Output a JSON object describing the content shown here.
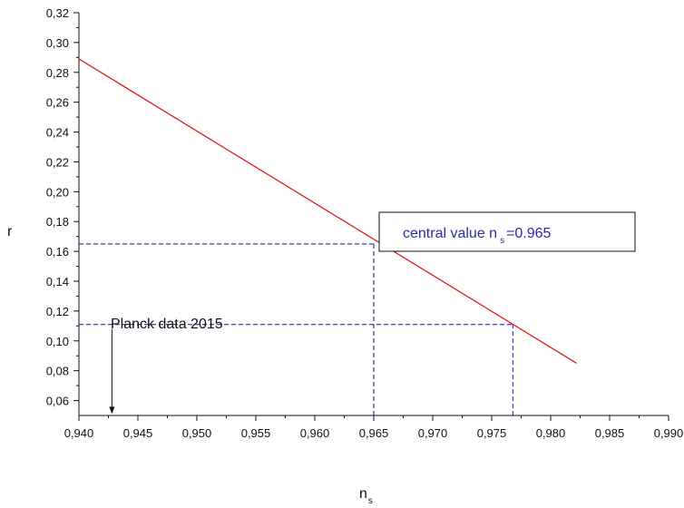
{
  "chart_data": {
    "type": "line",
    "title": "",
    "xlabel": "n",
    "xlabel_subscript": "s",
    "ylabel": "r",
    "xlim": [
      0.94,
      0.99
    ],
    "ylim": [
      0.05,
      0.32
    ],
    "x_ticks": [
      "0,940",
      "0,945",
      "0,950",
      "0,955",
      "0,960",
      "0,965",
      "0,970",
      "0,975",
      "0,980",
      "0,985",
      "0,990"
    ],
    "x_tick_values": [
      0.94,
      0.945,
      0.95,
      0.955,
      0.96,
      0.965,
      0.97,
      0.975,
      0.98,
      0.985,
      0.99
    ],
    "y_ticks": [
      "0,06",
      "0,08",
      "0,10",
      "0,12",
      "0,14",
      "0,16",
      "0,18",
      "0,20",
      "0,22",
      "0,24",
      "0,26",
      "0,28",
      "0,30",
      "0,32"
    ],
    "y_tick_values": [
      0.06,
      0.08,
      0.1,
      0.12,
      0.14,
      0.16,
      0.18,
      0.2,
      0.22,
      0.24,
      0.26,
      0.28,
      0.3,
      0.32
    ],
    "grid": false,
    "series": [
      {
        "color": "#e01a1a",
        "x": [
          0.94,
          0.9822
        ],
        "y": [
          0.289,
          0.085
        ]
      }
    ],
    "reference_lines": [
      {
        "color": "#2a2aa8",
        "style": "dashed",
        "kind": "h",
        "y": 0.165,
        "x_from": 0.94,
        "x_to": 0.965
      },
      {
        "color": "#2a2aa8",
        "style": "dashed",
        "kind": "v",
        "x": 0.965,
        "y_from": 0.05,
        "y_to": 0.165
      },
      {
        "color": "#2a2aa8",
        "style": "dashed",
        "kind": "h",
        "y": 0.111,
        "x_from": 0.94,
        "x_to": 0.9768
      },
      {
        "color": "#2a2aa8",
        "style": "dashed",
        "kind": "v",
        "x": 0.9768,
        "y_from": 0.05,
        "y_to": 0.111
      }
    ],
    "annotations": {
      "central_box": {
        "prefix": "central value n",
        "subscript": "s",
        "suffix": "=0.965",
        "color": "#2a2aa8"
      },
      "planck_label": "Planck data 2015",
      "planck_arrow": {
        "x": 0.9428,
        "y_from": 0.108,
        "y_to": 0.051
      }
    }
  }
}
